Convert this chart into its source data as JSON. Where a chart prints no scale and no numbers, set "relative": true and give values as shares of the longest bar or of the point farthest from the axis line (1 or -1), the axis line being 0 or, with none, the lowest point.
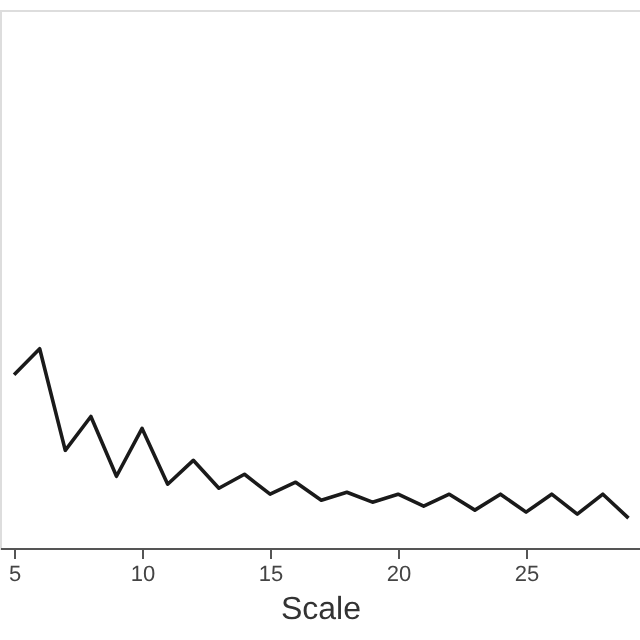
{
  "chart_data": {
    "type": "line",
    "xlabel": "Scale",
    "relative": true,
    "x": [
      5,
      6,
      7,
      8,
      9,
      10,
      11,
      12,
      13,
      14,
      15,
      16,
      17,
      18,
      19,
      20,
      21,
      22,
      23,
      24,
      25,
      26,
      27,
      28,
      29
    ],
    "series": [
      {
        "color": "#1a1a1a",
        "values": [
          0.87,
          1,
          0.49,
          0.66,
          0.36,
          0.6,
          0.32,
          0.44,
          0.3,
          0.37,
          0.27,
          0.33,
          0.24,
          0.28,
          0.23,
          0.27,
          0.21,
          0.27,
          0.19,
          0.27,
          0.18,
          0.27,
          0.17,
          0.27,
          0.15
        ]
      }
    ],
    "xlim": [
      4.45,
      29.45
    ],
    "xticks": [
      5,
      10,
      15,
      20,
      25
    ],
    "grid": false,
    "legend": false,
    "marker": "none",
    "line_style": "solid"
  }
}
